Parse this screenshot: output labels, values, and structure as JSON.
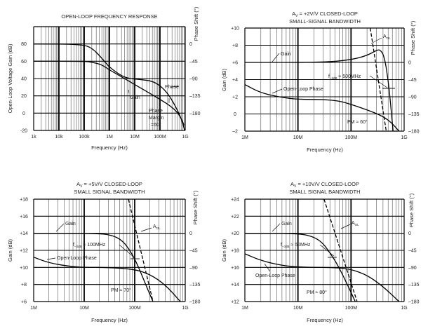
{
  "chart_data": [
    {
      "type": "line",
      "id": "c1",
      "title": "OPEN-LOOP FREQUENCY RESPONSE",
      "title2": "",
      "xlabel": "Frequency (Hz)",
      "ylabel": "Open-Loop Voltage Gain (dB)",
      "y2label": "Phase Shift (°)",
      "xscale": "log",
      "xlim": [
        1000,
        1000000000
      ],
      "ylim": [
        -20,
        100
      ],
      "grid": true,
      "xticks": [
        {
          "v": 1000,
          "label": "1k"
        },
        {
          "v": 10000,
          "label": "10k"
        },
        {
          "v": 100000,
          "label": "100k"
        },
        {
          "v": 1000000,
          "label": "1M"
        },
        {
          "v": 10000000,
          "label": "10M"
        },
        {
          "v": 100000000,
          "label": "100M"
        },
        {
          "v": 1000000000,
          "label": "1G"
        }
      ],
      "yticks": [
        {
          "v": -20,
          "label": "-20"
        },
        {
          "v": 0,
          "label": "0"
        },
        {
          "v": 20,
          "label": "20"
        },
        {
          "v": 40,
          "label": "40"
        },
        {
          "v": 60,
          "label": "60"
        },
        {
          "v": 80,
          "label": "80"
        }
      ],
      "y2ticks": [
        {
          "v": 80,
          "label": "0"
        },
        {
          "v": 60,
          "label": "–45"
        },
        {
          "v": 40,
          "label": "–90"
        },
        {
          "v": 20,
          "label": "–135"
        },
        {
          "v": 0,
          "label": "–180"
        }
      ],
      "series": [
        {
          "name": "Gain",
          "axis": "left",
          "dash": false,
          "x": [
            1000,
            100000,
            200000,
            500000,
            1000000,
            3000000,
            10000000,
            30000000,
            100000000,
            300000000,
            600000000,
            900000000
          ],
          "y": [
            60,
            60,
            59,
            56,
            50,
            42,
            33,
            25,
            16,
            7,
            -2,
            -14
          ]
        },
        {
          "name": "Phase",
          "axis": "right",
          "dash": false,
          "x": [
            1000,
            80000,
            200000,
            500000,
            1000000,
            3000000,
            6000000,
            20000000,
            50000000,
            100000000,
            200000000,
            400000000,
            700000000,
            950000000
          ],
          "y": [
            0,
            -1,
            -10,
            -37,
            -61,
            -83,
            -90,
            -93,
            -97,
            -108,
            -128,
            -160,
            -194,
            -225
          ]
        }
      ],
      "annotations": [
        {
          "text": "Phase",
          "lines": [],
          "arrow_to": "Phase"
        },
        {
          "text": "Gain",
          "lines": [],
          "arrow_to": "Gain"
        },
        {
          "text": "Phase",
          "lines": [
            "Margin",
            "=60°"
          ],
          "arrow_to": "Gain"
        }
      ]
    },
    {
      "type": "line",
      "id": "c2",
      "title": "A",
      "title_sub": "V",
      "title_rest": " = +2V/V CLOSED-LOOP",
      "title2": "SMALL-SIGNAL BANDWIDTH",
      "xlabel": "Frequency (Hz)",
      "ylabel": "Gain (dB)",
      "y2label": "Phase Shift (°)",
      "xscale": "log",
      "xlim": [
        1000000,
        1000000000
      ],
      "ylim": [
        -2,
        10
      ],
      "grid": true,
      "xticks": [
        {
          "v": 1000000,
          "label": "1M"
        },
        {
          "v": 10000000,
          "label": "10M"
        },
        {
          "v": 100000000,
          "label": "100M"
        },
        {
          "v": 1000000000,
          "label": "1G"
        }
      ],
      "yticks": [
        {
          "v": -2,
          "label": "–2"
        },
        {
          "v": 0,
          "label": "0"
        },
        {
          "v": 2,
          "label": "+2"
        },
        {
          "v": 4,
          "label": "+4"
        },
        {
          "v": 6,
          "label": "+6"
        },
        {
          "v": 8,
          "label": "+8"
        },
        {
          "v": 10,
          "label": "+10"
        }
      ],
      "y2ticks": [
        {
          "v": 6,
          "label": "0"
        },
        {
          "v": 4,
          "label": "–45"
        },
        {
          "v": 2,
          "label": "–90"
        },
        {
          "v": 0,
          "label": "–135"
        },
        {
          "v": -2,
          "label": "–180"
        }
      ],
      "series": [
        {
          "name": "Gain",
          "axis": "left",
          "dash": false,
          "x": [
            1000000,
            30000000,
            100000000,
            200000000,
            300000000,
            350000000,
            420000000,
            500000000,
            560000000,
            620000000
          ],
          "y": [
            6,
            6,
            6.3,
            6.8,
            7.4,
            7.5,
            6.8,
            4.0,
            1.0,
            -2
          ]
        },
        {
          "name": "Open-Loop Phase",
          "axis": "right",
          "dash": false,
          "x": [
            1000000,
            2000000,
            5000000,
            10000000,
            30000000,
            60000000,
            100000000,
            200000000,
            400000000,
            600000000,
            800000000
          ],
          "y": [
            -58,
            -80,
            -92,
            -97,
            -97,
            -101,
            -110,
            -124,
            -141,
            -160,
            -180
          ]
        },
        {
          "name": "ACL",
          "axis": "left",
          "dash": true,
          "x": [
            230000000,
            460000000
          ],
          "y": [
            10,
            -2
          ]
        }
      ],
      "annotations": [
        {
          "text": "Gain",
          "arrow_to": "Gain"
        },
        {
          "text": "A",
          "sub": "OL",
          "arrow_to": "ACL"
        },
        {
          "text": "f",
          "sub": "–3dB",
          "rest": " ≈ 500MHz",
          "arrow_to": "Gain"
        },
        {
          "text": "Open-Loop Phase",
          "arrow_to": "Open-Loop Phase"
        },
        {
          "text": "PM ≈ 60°",
          "arrow_to": "Open-Loop Phase"
        }
      ]
    },
    {
      "type": "line",
      "id": "c3",
      "title": "A",
      "title_sub": "V",
      "title_rest": " = +5V/V CLOSED-LOOP",
      "title2": "SMALL SIGNAL BANDWIDTH",
      "xlabel": "Frequency (Hz)",
      "ylabel": "Gain (dB)",
      "y2label": "Phase Shift (°)",
      "xscale": "log",
      "xlim": [
        1000000,
        1000000000
      ],
      "ylim": [
        6,
        18
      ],
      "grid": true,
      "xticks": [
        {
          "v": 1000000,
          "label": "1M"
        },
        {
          "v": 10000000,
          "label": "10M"
        },
        {
          "v": 100000000,
          "label": "100M"
        },
        {
          "v": 1000000000,
          "label": "1G"
        }
      ],
      "yticks": [
        {
          "v": 6,
          "label": "+6"
        },
        {
          "v": 8,
          "label": "+8"
        },
        {
          "v": 10,
          "label": "+10"
        },
        {
          "v": 12,
          "label": "+12"
        },
        {
          "v": 14,
          "label": "+14"
        },
        {
          "v": 16,
          "label": "+16"
        },
        {
          "v": 18,
          "label": "+18"
        }
      ],
      "y2ticks": [
        {
          "v": 14,
          "label": "0"
        },
        {
          "v": 12,
          "label": "–45"
        },
        {
          "v": 10,
          "label": "–90"
        },
        {
          "v": 8,
          "label": "–135"
        },
        {
          "v": 6,
          "label": "–180"
        }
      ],
      "series": [
        {
          "name": "Gain",
          "axis": "left",
          "dash": false,
          "x": [
            1000000,
            20000000,
            40000000,
            60000000,
            80000000,
            100000000,
            130000000,
            170000000,
            230000000
          ],
          "y": [
            14,
            14,
            13.7,
            13.0,
            12.0,
            11.0,
            9.5,
            7.8,
            6
          ]
        },
        {
          "name": "Open-Loop Phase",
          "axis": "right",
          "dash": false,
          "x": [
            1000000,
            2000000,
            5000000,
            10000000,
            30000000,
            100000000,
            200000000,
            400000000,
            800000000
          ],
          "y": [
            -63,
            -78,
            -87,
            -90,
            -90,
            -95,
            -108,
            -135,
            -180
          ]
        },
        {
          "name": "ACL",
          "axis": "left",
          "dash": true,
          "x": [
            75000000,
            230000000
          ],
          "y": [
            18,
            6
          ]
        }
      ],
      "annotations": [
        {
          "text": "Gain",
          "arrow_to": "Gain"
        },
        {
          "text": "A",
          "sub": "OL",
          "arrow_to": "ACL"
        },
        {
          "text": "f",
          "sub": "–3dB",
          "rest": " ≈ 100MHz",
          "arrow_to": "Gain"
        },
        {
          "text": "Open-Loop Phase",
          "arrow_to": "Open-Loop Phase"
        },
        {
          "text": "PM ≈ 70°",
          "arrow_to": "Open-Loop Phase"
        }
      ]
    },
    {
      "type": "line",
      "id": "c4",
      "title": "A",
      "title_sub": "V",
      "title_rest": " = +10V/V CLOSED-LOOP",
      "title2": "SMALL SIGNAL BANDWIDTH",
      "xlabel": "Frequency (Hz)",
      "ylabel": "Gain (dB)",
      "y2label": "Phase Shift (°)",
      "xscale": "log",
      "xlim": [
        1000000,
        1000000000
      ],
      "ylim": [
        12,
        24
      ],
      "grid": true,
      "xticks": [
        {
          "v": 1000000,
          "label": "1M"
        },
        {
          "v": 10000000,
          "label": "10M"
        },
        {
          "v": 100000000,
          "label": "100M"
        },
        {
          "v": 1000000000,
          "label": "1G"
        }
      ],
      "yticks": [
        {
          "v": 12,
          "label": "+12"
        },
        {
          "v": 14,
          "label": "+14"
        },
        {
          "v": 16,
          "label": "+16"
        },
        {
          "v": 18,
          "label": "+18"
        },
        {
          "v": 20,
          "label": "+20"
        },
        {
          "v": 22,
          "label": "+22"
        },
        {
          "v": 24,
          "label": "+24"
        }
      ],
      "y2ticks": [
        {
          "v": 20,
          "label": "0"
        },
        {
          "v": 18,
          "label": "–45"
        },
        {
          "v": 16,
          "label": "–90"
        },
        {
          "v": 14,
          "label": "–135"
        },
        {
          "v": 12,
          "label": "–180"
        }
      ],
      "series": [
        {
          "name": "Gain",
          "axis": "left",
          "dash": false,
          "x": [
            1000000,
            10000000,
            20000000,
            30000000,
            40000000,
            50000000,
            65000000,
            85000000,
            120000000
          ],
          "y": [
            20,
            20,
            19.6,
            18.8,
            17.7,
            16.8,
            15.5,
            14.0,
            12
          ]
        },
        {
          "name": "Open-Loop Phase",
          "axis": "right",
          "dash": false,
          "x": [
            1000000,
            2000000,
            5000000,
            10000000,
            30000000,
            60000000,
            100000000,
            200000000,
            400000000,
            800000000
          ],
          "y": [
            -54,
            -72,
            -85,
            -89,
            -90,
            -91,
            -95,
            -110,
            -140,
            -180
          ]
        },
        {
          "name": "ACL",
          "axis": "left",
          "dash": true,
          "x": [
            31000000,
            130000000
          ],
          "y": [
            24,
            12
          ]
        }
      ],
      "annotations": [
        {
          "text": "Gain",
          "arrow_to": "Gain"
        },
        {
          "text": "A",
          "sub": "OL",
          "arrow_to": "ACL"
        },
        {
          "text": "f",
          "sub": "–3dB",
          "rest": " ≈ 50MHz",
          "arrow_to": "Gain"
        },
        {
          "text": "Open-Loop Phase",
          "arrow_to": "Open-Loop Phase"
        },
        {
          "text": "PM ≈ 80°",
          "arrow_to": "Open-Loop Phase"
        }
      ]
    }
  ]
}
